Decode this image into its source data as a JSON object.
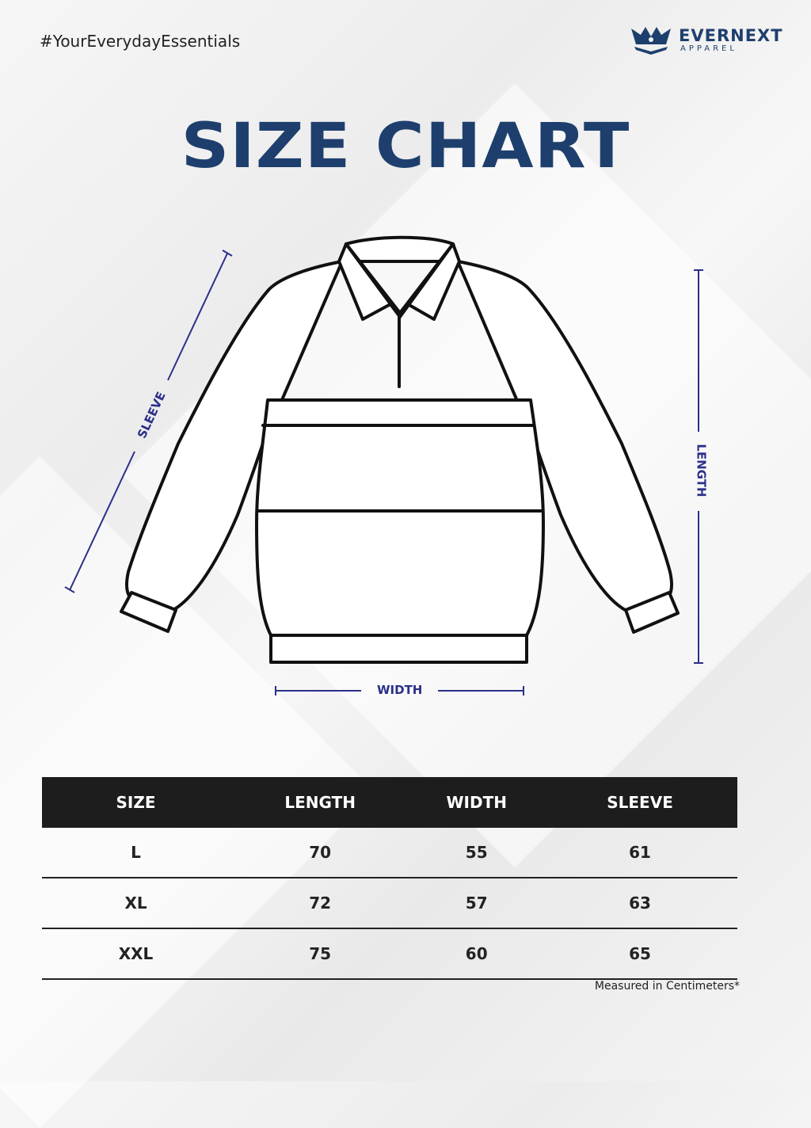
{
  "tagline": "#YourEverydayEssentials",
  "logo": {
    "brand": "EVERNEXT",
    "sub": "APPAREL",
    "icon": "crown-icon"
  },
  "title": "SIZE CHART",
  "measurements": {
    "sleeve": "SLEEVE",
    "length": "LENGTH",
    "width": "WIDTH"
  },
  "colors": {
    "brand": "#1e3f6e",
    "measure": "#2b2f8a",
    "header_bg": "#1d1d1d"
  },
  "table": {
    "headers": [
      "SIZE",
      "LENGTH",
      "WIDTH",
      "SLEEVE"
    ],
    "rows": [
      [
        "L",
        "70",
        "55",
        "61"
      ],
      [
        "XL",
        "72",
        "57",
        "63"
      ],
      [
        "XXL",
        "75",
        "60",
        "65"
      ]
    ]
  },
  "note": "Measured in Centimeters*"
}
